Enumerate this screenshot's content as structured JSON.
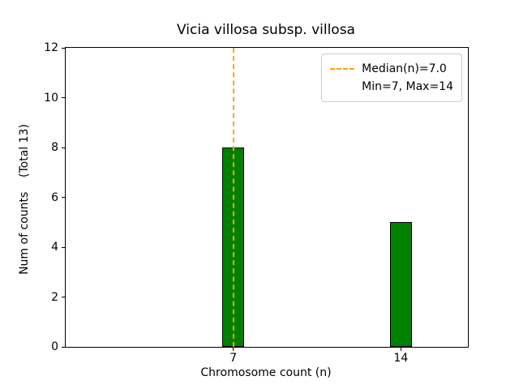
{
  "figure": {
    "title": "Vicia villosa subsp. villosa",
    "xlabel": "Chromosome count (n)",
    "ylabel": "Num of counts    (Total 13)"
  },
  "legend": {
    "position": "upper right",
    "items": [
      {
        "label": "Median(n)=7.0",
        "marker": "dashed-line",
        "color": "#FFA500"
      },
      {
        "label": "Min=7, Max=14",
        "marker": "none"
      }
    ]
  },
  "chart_data": {
    "type": "bar",
    "title": "Vicia villosa subsp. villosa",
    "xlabel": "Chromosome count (n)",
    "ylabel": "Num of counts    (Total 13)",
    "x": [
      7,
      14
    ],
    "values": [
      8,
      5
    ],
    "total": 13,
    "bar_color": "#008000",
    "bar_edge_color": "#000000",
    "bar_width_units": 0.9,
    "xlim": [
      0,
      16.8
    ],
    "ylim": [
      0,
      12
    ],
    "xticks": [
      7,
      14
    ],
    "yticks": [
      0,
      2,
      4,
      6,
      8,
      10,
      12
    ],
    "grid": false,
    "median_line": {
      "x": 7,
      "color": "#FFA500",
      "style": "dashed",
      "label": "Median(n)=7.0"
    },
    "annotations": [
      "Min=7, Max=14"
    ],
    "legend_position": "upper right"
  }
}
